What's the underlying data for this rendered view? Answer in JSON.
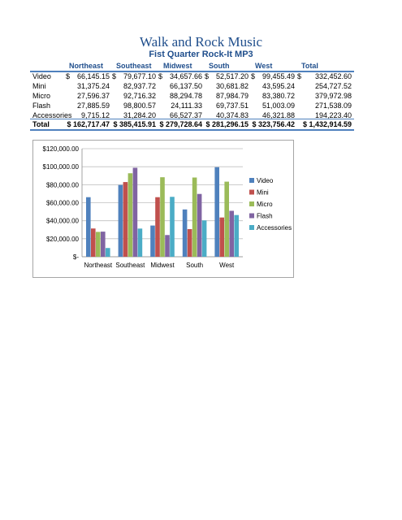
{
  "title": "Walk and Rock Music",
  "subtitle": "Fist Quarter Rock-It MP3",
  "columns": [
    "Northeast",
    "Southeast",
    "Midwest",
    "South",
    "West",
    "Total"
  ],
  "rows": [
    {
      "label": "Video",
      "values": [
        "66,145.15",
        "79,677.10",
        "34,657.66",
        "52,517.20",
        "99,455.49",
        "332,452.60"
      ]
    },
    {
      "label": "Mini",
      "values": [
        "31,375.24",
        "82,937.72",
        "66,137.50",
        "30,681.82",
        "43,595.24",
        "254,727.52"
      ]
    },
    {
      "label": "Micro",
      "values": [
        "27,596.37",
        "92,716.32",
        "88,294.78",
        "87,984.79",
        "83,380.72",
        "379,972.98"
      ]
    },
    {
      "label": "Flash",
      "values": [
        "27,885.59",
        "98,800.57",
        "24,111.33",
        "69,737.51",
        "51,003.09",
        "271,538.09"
      ]
    },
    {
      "label": "Accessories",
      "values": [
        "9,715.12",
        "31,284.20",
        "66,527.37",
        "40,374.83",
        "46,321.88",
        "194,223.40"
      ]
    }
  ],
  "total": {
    "label": "Total",
    "values": [
      "$ 162,717.47",
      "$ 385,415.91",
      "$ 279,728.64",
      "$ 281,296.15",
      "$ 323,756.42",
      "$ 1,432,914.59"
    ]
  },
  "currency_symbol": "$",
  "chart_data": {
    "type": "bar",
    "categories": [
      "Northeast",
      "Southeast",
      "Midwest",
      "South",
      "West"
    ],
    "series": [
      {
        "name": "Video",
        "color": "#4f81bd",
        "values": [
          66145.15,
          79677.1,
          34657.66,
          52517.2,
          99455.49
        ]
      },
      {
        "name": "Mini",
        "color": "#c0504d",
        "values": [
          31375.24,
          82937.72,
          66137.5,
          30681.82,
          43595.24
        ]
      },
      {
        "name": "Micro",
        "color": "#9bbb59",
        "values": [
          27596.37,
          92716.32,
          88294.78,
          87984.79,
          83380.72
        ]
      },
      {
        "name": "Flash",
        "color": "#8064a2",
        "values": [
          27885.59,
          98800.57,
          24111.33,
          69737.51,
          51003.09
        ]
      },
      {
        "name": "Accessories",
        "color": "#4bacc6",
        "values": [
          9715.12,
          31284.2,
          66527.37,
          40374.83,
          46321.88
        ]
      }
    ],
    "yticks": [
      "$-",
      "$20,000.00",
      "$40,000.00",
      "$60,000.00",
      "$80,000.00",
      "$100,000.00",
      "$120,000.00"
    ],
    "ylim": [
      0,
      120000
    ],
    "grid": true,
    "legend": "right"
  }
}
